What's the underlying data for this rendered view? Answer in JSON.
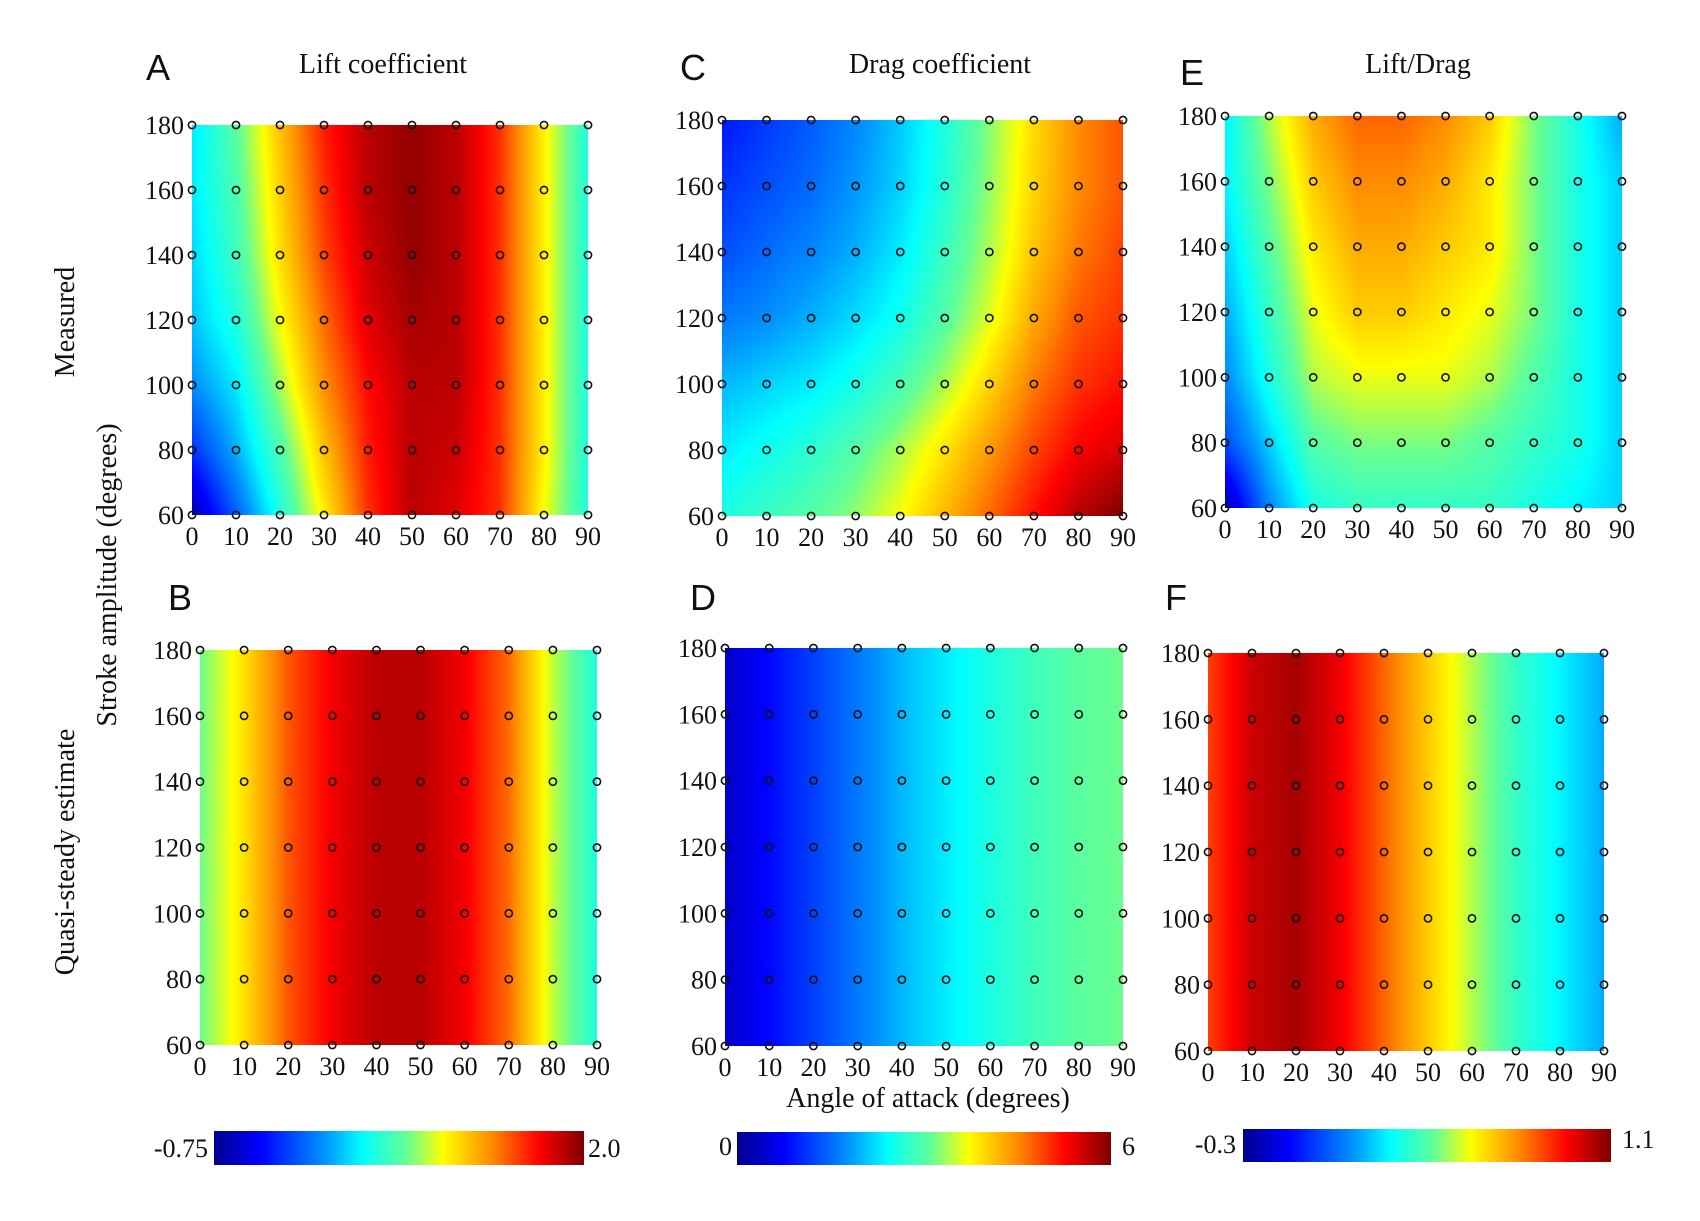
{
  "figure": {
    "column_titles": [
      "Lift coefficient",
      "Drag coefficient",
      "Lift/Drag"
    ],
    "row_labels": [
      "Measured",
      "Quasi-steady estimate"
    ],
    "shared_ylabel": "Stroke amplitude (degrees)",
    "shared_xlabel": "Angle of attack (degrees)",
    "colormap": [
      "#00008f",
      "#0000ff",
      "#0080ff",
      "#00ffff",
      "#80ff80",
      "#ffff00",
      "#ff8000",
      "#ff0000",
      "#800000"
    ],
    "colorbars": [
      {
        "min_label": "-0.75",
        "max_label": "2.0"
      },
      {
        "min_label": "0",
        "max_label": "6"
      },
      {
        "min_label": "-0.3",
        "max_label": "1.1"
      }
    ]
  },
  "chart_data": [
    {
      "panel": "A",
      "type": "heatmap",
      "title": "Lift coefficient",
      "row": "Measured",
      "x": [
        0,
        10,
        20,
        30,
        40,
        50,
        60,
        70,
        80,
        90
      ],
      "y": [
        60,
        80,
        100,
        120,
        140,
        160,
        180
      ],
      "xlim": [
        0,
        90
      ],
      "ylim": [
        60,
        180
      ],
      "x_ticks": [
        "0",
        "10",
        "20",
        "30",
        "40",
        "50",
        "60",
        "70",
        "80",
        "90"
      ],
      "y_ticks": [
        "60",
        "80",
        "100",
        "120",
        "140",
        "160",
        "180"
      ],
      "zlim": [
        -0.75,
        2.0
      ],
      "z": [
        [
          -0.65,
          -0.1,
          0.45,
          1.0,
          1.55,
          1.85,
          1.75,
          1.55,
          0.95,
          0.45
        ],
        [
          -0.25,
          0.15,
          0.6,
          1.15,
          1.6,
          1.85,
          1.8,
          1.55,
          1.0,
          0.45
        ],
        [
          0.05,
          0.3,
          0.8,
          1.3,
          1.65,
          1.85,
          1.85,
          1.55,
          1.0,
          0.45
        ],
        [
          0.2,
          0.45,
          0.95,
          1.4,
          1.75,
          1.9,
          1.85,
          1.55,
          1.0,
          0.45
        ],
        [
          0.25,
          0.55,
          1.05,
          1.5,
          1.8,
          1.95,
          1.85,
          1.55,
          1.0,
          0.45
        ],
        [
          0.3,
          0.6,
          1.1,
          1.55,
          1.85,
          1.95,
          1.85,
          1.55,
          1.0,
          0.45
        ],
        [
          0.3,
          0.65,
          1.15,
          1.6,
          1.85,
          1.95,
          1.85,
          1.55,
          1.0,
          0.45
        ]
      ]
    },
    {
      "panel": "B",
      "type": "heatmap",
      "row": "Quasi-steady estimate",
      "x": [
        0,
        10,
        20,
        30,
        40,
        50,
        60,
        70,
        80,
        90
      ],
      "y": [
        60,
        80,
        100,
        120,
        140,
        160,
        180
      ],
      "xlim": [
        0,
        90
      ],
      "ylim": [
        60,
        180
      ],
      "x_ticks": [
        "0",
        "10",
        "20",
        "30",
        "40",
        "50",
        "60",
        "70",
        "80",
        "90"
      ],
      "y_ticks": [
        "60",
        "80",
        "100",
        "120",
        "140",
        "160",
        "180"
      ],
      "zlim": [
        -0.75,
        2.0
      ],
      "z": [
        [
          0.7,
          1.05,
          1.45,
          1.7,
          1.85,
          1.85,
          1.7,
          1.4,
          0.85,
          0.45
        ],
        [
          0.7,
          1.05,
          1.45,
          1.7,
          1.85,
          1.85,
          1.7,
          1.4,
          0.85,
          0.45
        ],
        [
          0.7,
          1.05,
          1.45,
          1.7,
          1.85,
          1.85,
          1.7,
          1.4,
          0.85,
          0.45
        ],
        [
          0.7,
          1.05,
          1.45,
          1.7,
          1.85,
          1.85,
          1.7,
          1.4,
          0.85,
          0.45
        ],
        [
          0.7,
          1.05,
          1.45,
          1.7,
          1.85,
          1.85,
          1.7,
          1.4,
          0.85,
          0.45
        ],
        [
          0.7,
          1.05,
          1.45,
          1.7,
          1.85,
          1.85,
          1.7,
          1.4,
          0.85,
          0.45
        ],
        [
          0.7,
          1.05,
          1.45,
          1.7,
          1.85,
          1.85,
          1.7,
          1.4,
          0.85,
          0.45
        ]
      ]
    },
    {
      "panel": "C",
      "type": "heatmap",
      "title": "Drag coefficient",
      "row": "Measured",
      "x": [
        0,
        10,
        20,
        30,
        40,
        50,
        60,
        70,
        80,
        90
      ],
      "y": [
        60,
        80,
        100,
        120,
        140,
        160,
        180
      ],
      "xlim": [
        0,
        90
      ],
      "ylim": [
        60,
        180
      ],
      "x_ticks": [
        "0",
        "10",
        "20",
        "30",
        "40",
        "50",
        "60",
        "70",
        "80",
        "90"
      ],
      "y_ticks": [
        "60",
        "80",
        "100",
        "120",
        "140",
        "160",
        "180"
      ],
      "zlim": [
        0,
        6
      ],
      "z": [
        [
          2.6,
          2.8,
          3.0,
          3.3,
          3.7,
          4.2,
          4.7,
          5.2,
          5.7,
          6.0
        ],
        [
          2.3,
          2.5,
          2.7,
          3.0,
          3.4,
          3.9,
          4.4,
          4.9,
          5.3,
          5.5
        ],
        [
          2.0,
          2.15,
          2.3,
          2.55,
          2.9,
          3.4,
          4.0,
          4.6,
          5.0,
          5.2
        ],
        [
          1.6,
          1.75,
          1.95,
          2.2,
          2.5,
          3.0,
          3.6,
          4.3,
          4.8,
          5.0
        ],
        [
          1.3,
          1.5,
          1.7,
          1.95,
          2.3,
          2.8,
          3.4,
          4.1,
          4.6,
          4.9
        ],
        [
          1.1,
          1.3,
          1.5,
          1.8,
          2.15,
          2.65,
          3.3,
          4.0,
          4.5,
          4.8
        ],
        [
          0.9,
          1.15,
          1.4,
          1.7,
          2.1,
          2.6,
          3.25,
          3.95,
          4.5,
          4.8
        ]
      ]
    },
    {
      "panel": "D",
      "type": "heatmap",
      "row": "Quasi-steady estimate",
      "x": [
        0,
        10,
        20,
        30,
        40,
        50,
        60,
        70,
        80,
        90
      ],
      "y": [
        60,
        80,
        100,
        120,
        140,
        160,
        180
      ],
      "xlim": [
        0,
        90
      ],
      "ylim": [
        60,
        180
      ],
      "x_ticks": [
        "0",
        "10",
        "20",
        "30",
        "40",
        "50",
        "60",
        "70",
        "80",
        "90"
      ],
      "y_ticks": [
        "60",
        "80",
        "100",
        "120",
        "140",
        "160",
        "180"
      ],
      "zlim": [
        0,
        6
      ],
      "z": [
        [
          0.4,
          0.8,
          1.2,
          1.6,
          2.0,
          2.3,
          2.6,
          2.85,
          3.05,
          3.15
        ],
        [
          0.4,
          0.8,
          1.2,
          1.6,
          2.0,
          2.3,
          2.6,
          2.85,
          3.05,
          3.15
        ],
        [
          0.4,
          0.8,
          1.2,
          1.6,
          2.0,
          2.3,
          2.6,
          2.85,
          3.05,
          3.15
        ],
        [
          0.4,
          0.8,
          1.2,
          1.6,
          2.0,
          2.3,
          2.6,
          2.85,
          3.05,
          3.15
        ],
        [
          0.4,
          0.8,
          1.2,
          1.6,
          2.0,
          2.3,
          2.6,
          2.85,
          3.05,
          3.15
        ],
        [
          0.4,
          0.8,
          1.2,
          1.6,
          2.0,
          2.3,
          2.6,
          2.85,
          3.05,
          3.15
        ],
        [
          0.4,
          0.8,
          1.2,
          1.6,
          2.0,
          2.3,
          2.6,
          2.85,
          3.05,
          3.15
        ]
      ]
    },
    {
      "panel": "E",
      "type": "heatmap",
      "title": "Lift/Drag",
      "row": "Measured",
      "x": [
        0,
        10,
        20,
        30,
        40,
        50,
        60,
        70,
        80,
        90
      ],
      "y": [
        60,
        80,
        100,
        120,
        140,
        160,
        180
      ],
      "xlim": [
        0,
        90
      ],
      "ylim": [
        60,
        180
      ],
      "x_ticks": [
        "0",
        "10",
        "20",
        "30",
        "40",
        "50",
        "60",
        "70",
        "80",
        "90"
      ],
      "y_ticks": [
        "60",
        "80",
        "100",
        "120",
        "140",
        "160",
        "180"
      ],
      "zlim": [
        -0.3,
        1.1
      ],
      "z": [
        [
          -0.25,
          0.1,
          0.3,
          0.35,
          0.35,
          0.35,
          0.35,
          0.3,
          0.25,
          0.2
        ],
        [
          0.0,
          0.2,
          0.4,
          0.45,
          0.45,
          0.45,
          0.4,
          0.35,
          0.3,
          0.2
        ],
        [
          0.1,
          0.3,
          0.5,
          0.55,
          0.55,
          0.55,
          0.5,
          0.4,
          0.3,
          0.2
        ],
        [
          0.15,
          0.35,
          0.55,
          0.65,
          0.65,
          0.6,
          0.55,
          0.45,
          0.3,
          0.2
        ],
        [
          0.2,
          0.4,
          0.6,
          0.7,
          0.7,
          0.65,
          0.6,
          0.45,
          0.3,
          0.2
        ],
        [
          0.25,
          0.45,
          0.65,
          0.75,
          0.75,
          0.7,
          0.6,
          0.45,
          0.3,
          0.2
        ],
        [
          0.25,
          0.5,
          0.7,
          0.8,
          0.8,
          0.75,
          0.65,
          0.45,
          0.3,
          0.15
        ]
      ]
    },
    {
      "panel": "F",
      "type": "heatmap",
      "row": "Quasi-steady estimate",
      "x": [
        0,
        10,
        20,
        30,
        40,
        50,
        60,
        70,
        80,
        90
      ],
      "y": [
        60,
        80,
        100,
        120,
        140,
        160,
        180
      ],
      "xlim": [
        0,
        90
      ],
      "ylim": [
        60,
        180
      ],
      "x_ticks": [
        "0",
        "10",
        "20",
        "30",
        "40",
        "50",
        "60",
        "70",
        "80",
        "90"
      ],
      "y_ticks": [
        "60",
        "80",
        "100",
        "120",
        "140",
        "160",
        "180"
      ],
      "zlim": [
        -0.3,
        1.1
      ],
      "z": [
        [
          0.85,
          1.0,
          1.05,
          0.95,
          0.8,
          0.65,
          0.5,
          0.35,
          0.25,
          0.15
        ],
        [
          0.85,
          1.0,
          1.05,
          0.95,
          0.8,
          0.65,
          0.5,
          0.35,
          0.25,
          0.15
        ],
        [
          0.85,
          1.0,
          1.05,
          0.95,
          0.8,
          0.65,
          0.5,
          0.35,
          0.25,
          0.15
        ],
        [
          0.85,
          1.0,
          1.05,
          0.95,
          0.8,
          0.65,
          0.5,
          0.35,
          0.25,
          0.15
        ],
        [
          0.85,
          1.0,
          1.05,
          0.95,
          0.8,
          0.65,
          0.5,
          0.35,
          0.25,
          0.15
        ],
        [
          0.85,
          1.0,
          1.05,
          0.95,
          0.8,
          0.65,
          0.5,
          0.35,
          0.25,
          0.15
        ],
        [
          0.85,
          1.0,
          1.05,
          0.95,
          0.8,
          0.65,
          0.5,
          0.35,
          0.25,
          0.15
        ]
      ]
    }
  ]
}
